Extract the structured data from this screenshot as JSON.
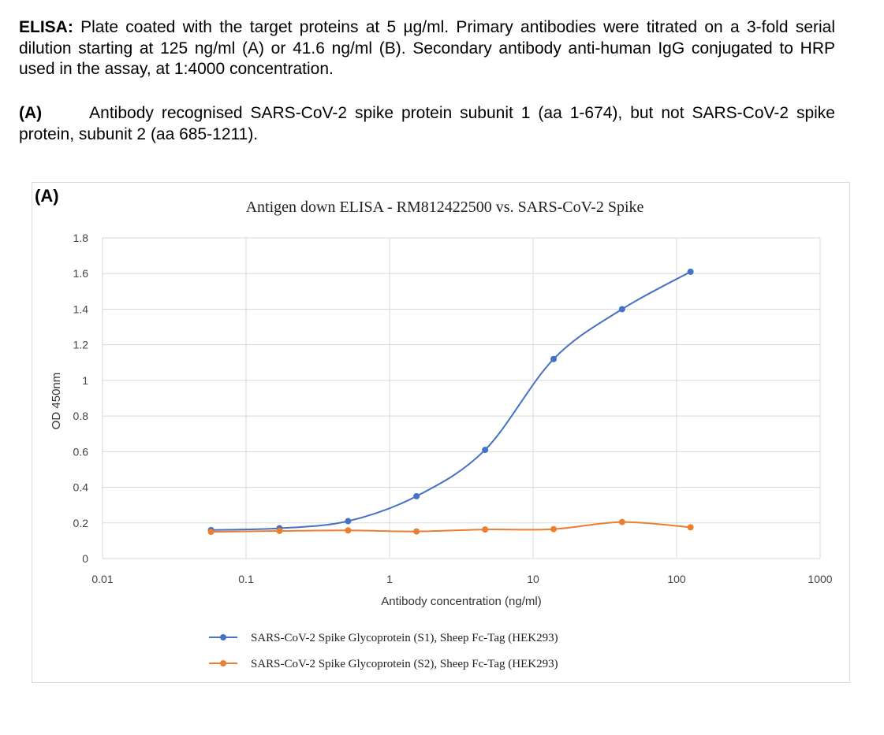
{
  "description": {
    "p1_bold": "ELISA:",
    "p1_text": " Plate coated with the target proteins at 5 µg/ml. Primary antibodies were titrated on a 3-fold serial dilution starting at 125 ng/ml (A) or 41.6 ng/ml (B). Secondary antibody anti-human IgG conjugated to HRP used in the assay, at 1:4000 concentration.",
    "p2_bold": "(A)",
    "p2_text": "Antibody recognised SARS-CoV-2 spike protein subunit 1 (aa 1-674), but not SARS-CoV-2 spike protein, subunit 2 (aa 685-1211)."
  },
  "chart_data": {
    "type": "line",
    "panel_label": "(A)",
    "title": "Antigen down ELISA - RM812422500 vs. SARS-CoV-2 Spike",
    "xlabel": "Antibody concentration (ng/ml)",
    "ylabel": "OD 450nm",
    "x_scale": "log",
    "xlim": [
      0.01,
      1000
    ],
    "ylim": [
      0,
      1.8
    ],
    "x_ticks": [
      "0.01",
      "0.1",
      "1",
      "10",
      "100",
      "1000"
    ],
    "y_ticks": [
      "0",
      "0.2",
      "0.4",
      "0.6",
      "0.8",
      "1",
      "1.2",
      "1.4",
      "1.6",
      "1.8"
    ],
    "grid": true,
    "legend_position": "bottom",
    "x": [
      0.057,
      0.171,
      0.514,
      1.54,
      4.63,
      13.9,
      41.7,
      125
    ],
    "series": [
      {
        "name": "SARS-CoV-2 Spike Glycoprotein (S1), Sheep Fc-Tag (HEK293)",
        "color": "#4472c4",
        "values": [
          0.16,
          0.17,
          0.21,
          0.35,
          0.61,
          1.12,
          1.4,
          1.61
        ]
      },
      {
        "name": "SARS-CoV-2 Spike Glycoprotein (S2), Sheep Fc-Tag (HEK293)",
        "color": "#ed7d31",
        "values": [
          0.15,
          0.155,
          0.158,
          0.152,
          0.163,
          0.165,
          0.205,
          0.175
        ]
      }
    ]
  }
}
